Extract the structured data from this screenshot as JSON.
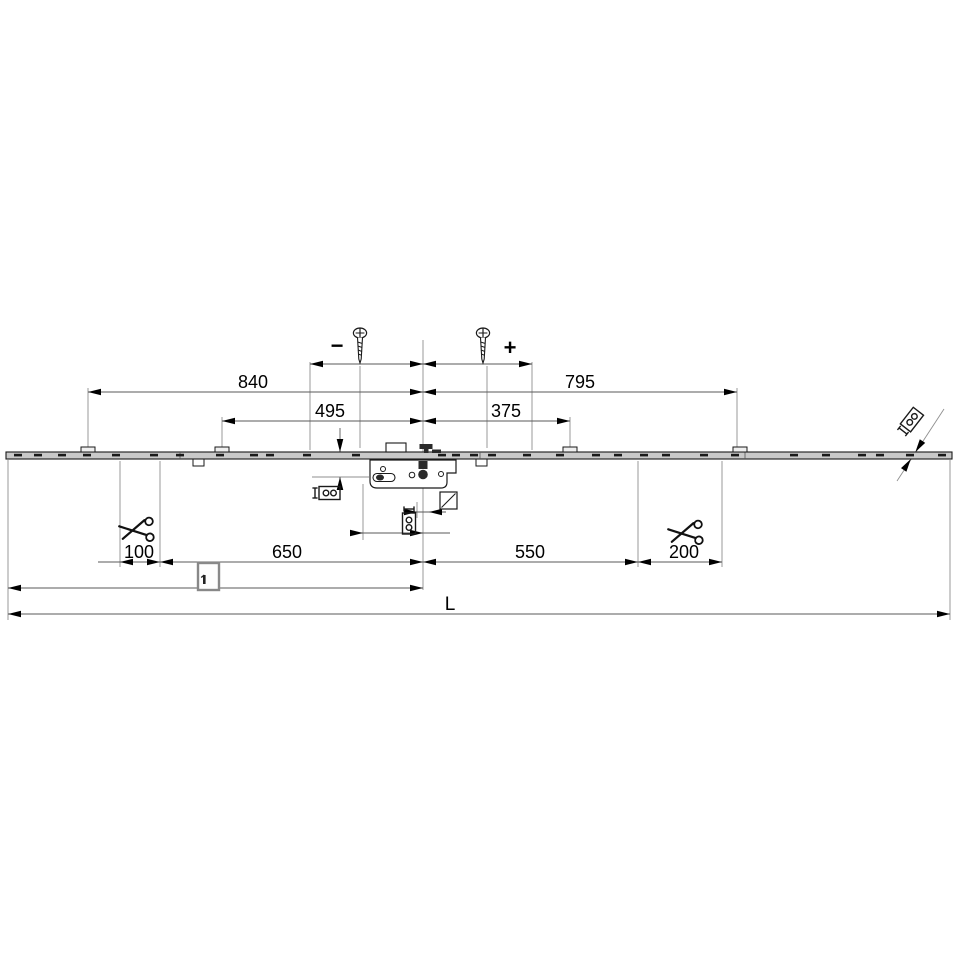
{
  "drawing": {
    "type": "technical-dimension-drawing",
    "dimensions": {
      "adjust_minus": "−",
      "adjust_plus": "+",
      "top_left": "840",
      "top_right": "795",
      "mid_left": "495",
      "mid_right": "375",
      "cut_left": "100",
      "bottom_left": "650",
      "bottom_right": "550",
      "cut_right": "200",
      "total_length": "L"
    },
    "icons": {
      "screw": "screw-icon",
      "scissors": "scissors-cut-icon",
      "spindle_square": "square-spindle-icon",
      "handle_position": "window-sash-marker-icon",
      "cross_section": "cut-section-marker-icon"
    },
    "colors": {
      "line": "#1a1a1a",
      "dimension_line": "#5a5a5a",
      "extension_line": "#8f8f8f",
      "rail_fill": "#c9c9c9",
      "background": "#ffffff"
    }
  }
}
